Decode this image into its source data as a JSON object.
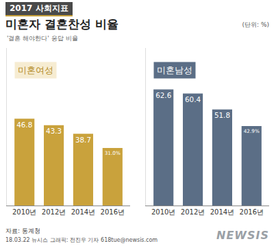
{
  "header": {
    "title": "2017 사회지표",
    "subtitle": "미혼자 결혼찬성 비율",
    "unit": "(단위: %)",
    "note": "'결혼 해야한다' 응답 비율"
  },
  "chart_data": [
    {
      "type": "bar",
      "title": "미혼여성",
      "categories": [
        "2010년",
        "2012년",
        "2014년",
        "2016년"
      ],
      "values": [
        46.8,
        43.3,
        38.7,
        31.0
      ],
      "value_labels": [
        "46.8",
        "43.3",
        "38.7",
        "31.0%"
      ],
      "color": "#c9a23c",
      "ylim": [
        0,
        85
      ],
      "data_labels": true,
      "tick_labels": "x",
      "grid": false
    },
    {
      "type": "bar",
      "title": "미혼남성",
      "categories": [
        "2010년",
        "2012년",
        "2014년",
        "2016년"
      ],
      "values": [
        62.6,
        60.4,
        51.8,
        42.9
      ],
      "value_labels": [
        "62.6",
        "60.4",
        "51.8",
        "42.9%"
      ],
      "color": "#5b6e86",
      "ylim": [
        0,
        85
      ],
      "data_labels": true,
      "tick_labels": "x",
      "grid": false
    }
  ],
  "footer": {
    "source": "자료: 통계청",
    "credit": "18.03.22 뉴시스 그래픽: 전진우 기자 618tue@newsis.com",
    "logo": "NEWSIS"
  }
}
